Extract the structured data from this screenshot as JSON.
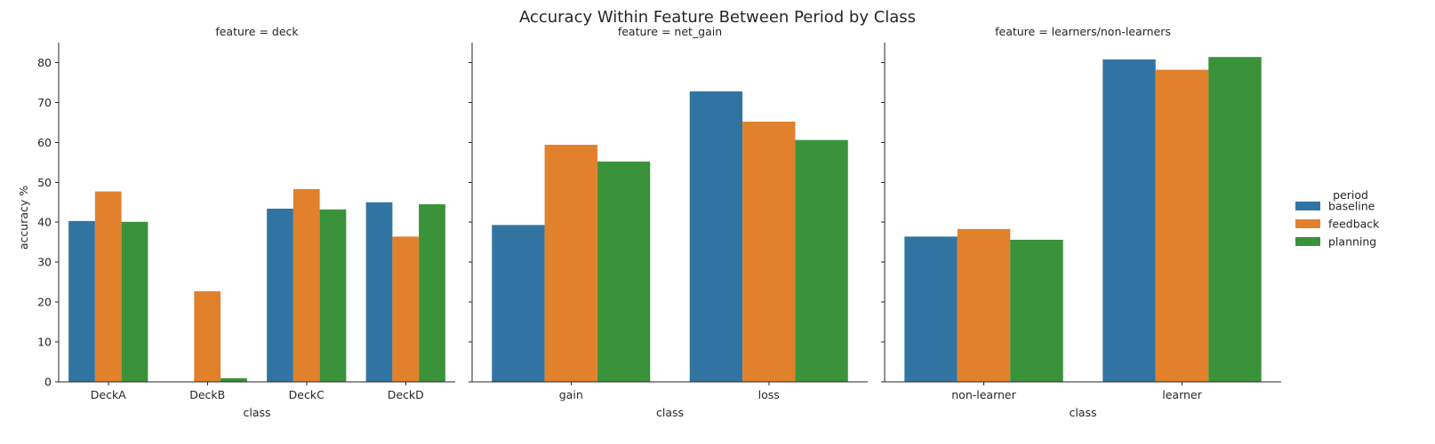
{
  "chart_data": {
    "type": "bar",
    "title": "Accuracy Within Feature Between Period by Class",
    "ylabel": "accuracy %",
    "xlabel": "class",
    "ylim": [
      0,
      85
    ],
    "yticks": [
      0,
      10,
      20,
      30,
      40,
      50,
      60,
      70,
      80
    ],
    "grid": false,
    "legend": {
      "title": "period",
      "placement": "right",
      "entries": [
        "baseline",
        "feedback",
        "planning"
      ]
    },
    "colors": {
      "baseline": "#3274a1",
      "feedback": "#e1812c",
      "planning": "#3a923a"
    },
    "panels": [
      {
        "title": "feature = deck",
        "xlabel": "class",
        "categories": [
          "DeckA",
          "DeckB",
          "DeckC",
          "DeckD"
        ],
        "series": [
          {
            "name": "baseline",
            "values": [
              40.3,
              0,
              43.4,
              45.0
            ]
          },
          {
            "name": "feedback",
            "values": [
              47.7,
              22.7,
              48.3,
              36.4
            ]
          },
          {
            "name": "planning",
            "values": [
              40.1,
              0.9,
              43.2,
              44.5
            ]
          }
        ]
      },
      {
        "title": "feature = net_gain",
        "xlabel": "class",
        "categories": [
          "gain",
          "loss"
        ],
        "series": [
          {
            "name": "baseline",
            "values": [
              39.3,
              72.8
            ]
          },
          {
            "name": "feedback",
            "values": [
              59.4,
              65.2
            ]
          },
          {
            "name": "planning",
            "values": [
              55.2,
              60.6
            ]
          }
        ]
      },
      {
        "title": "feature = learners/non-learners",
        "xlabel": "class",
        "categories": [
          "non-learner",
          "learner"
        ],
        "series": [
          {
            "name": "baseline",
            "values": [
              36.4,
              80.8
            ]
          },
          {
            "name": "feedback",
            "values": [
              38.3,
              78.2
            ]
          },
          {
            "name": "planning",
            "values": [
              35.6,
              81.4
            ]
          }
        ]
      }
    ]
  }
}
